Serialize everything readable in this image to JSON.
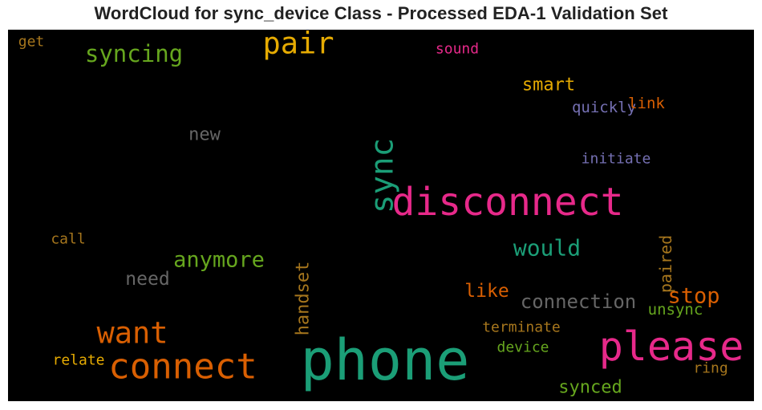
{
  "chart_data": {
    "type": "wordcloud",
    "title": "WordCloud for sync_device Class - Processed EDA-1 Validation Set",
    "background": "#000000",
    "words": [
      {
        "text": "phone",
        "weight": 1.0,
        "color": "#1b9e77",
        "orientation": "horizontal"
      },
      {
        "text": "please",
        "weight": 0.72,
        "color": "#e7298a",
        "orientation": "horizontal"
      },
      {
        "text": "disconnect",
        "weight": 0.68,
        "color": "#e7298a",
        "orientation": "horizontal"
      },
      {
        "text": "connect",
        "weight": 0.63,
        "color": "#d95f02",
        "orientation": "horizontal"
      },
      {
        "text": "sync",
        "weight": 0.55,
        "color": "#1b9e77",
        "orientation": "vertical"
      },
      {
        "text": "want",
        "weight": 0.53,
        "color": "#d95f02",
        "orientation": "horizontal"
      },
      {
        "text": "pair",
        "weight": 0.53,
        "color": "#e6ab02",
        "orientation": "horizontal"
      },
      {
        "text": "syncing",
        "weight": 0.42,
        "color": "#66a61e",
        "orientation": "horizontal"
      },
      {
        "text": "would",
        "weight": 0.4,
        "color": "#1b9e77",
        "orientation": "horizontal"
      },
      {
        "text": "anymore",
        "weight": 0.39,
        "color": "#66a61e",
        "orientation": "horizontal"
      },
      {
        "text": "stop",
        "weight": 0.38,
        "color": "#d95f02",
        "orientation": "horizontal"
      },
      {
        "text": "connection",
        "weight": 0.34,
        "color": "#666666",
        "orientation": "horizontal"
      },
      {
        "text": "need",
        "weight": 0.33,
        "color": "#666666",
        "orientation": "horizontal"
      },
      {
        "text": "handset",
        "weight": 0.32,
        "color": "#a6761d",
        "orientation": "vertical"
      },
      {
        "text": "like",
        "weight": 0.33,
        "color": "#d95f02",
        "orientation": "horizontal"
      },
      {
        "text": "synced",
        "weight": 0.32,
        "color": "#66a61e",
        "orientation": "horizontal"
      },
      {
        "text": "smart",
        "weight": 0.31,
        "color": "#e6ab02",
        "orientation": "horizontal"
      },
      {
        "text": "new",
        "weight": 0.31,
        "color": "#666666",
        "orientation": "horizontal"
      },
      {
        "text": "paired",
        "weight": 0.28,
        "color": "#a6761d",
        "orientation": "vertical"
      },
      {
        "text": "unsync",
        "weight": 0.27,
        "color": "#66a61e",
        "orientation": "horizontal"
      },
      {
        "text": "quickly",
        "weight": 0.27,
        "color": "#7570b3",
        "orientation": "horizontal"
      },
      {
        "text": "link",
        "weight": 0.27,
        "color": "#d95f02",
        "orientation": "horizontal"
      },
      {
        "text": "initiate",
        "weight": 0.26,
        "color": "#7570b3",
        "orientation": "horizontal"
      },
      {
        "text": "terminate",
        "weight": 0.26,
        "color": "#a6761d",
        "orientation": "horizontal"
      },
      {
        "text": "device",
        "weight": 0.26,
        "color": "#66a61e",
        "orientation": "horizontal"
      },
      {
        "text": "ring",
        "weight": 0.26,
        "color": "#a6761d",
        "orientation": "horizontal"
      },
      {
        "text": "relate",
        "weight": 0.26,
        "color": "#e6ab02",
        "orientation": "horizontal"
      },
      {
        "text": "sound",
        "weight": 0.25,
        "color": "#e7298a",
        "orientation": "horizontal"
      },
      {
        "text": "call",
        "weight": 0.25,
        "color": "#a6761d",
        "orientation": "horizontal"
      },
      {
        "text": "get",
        "weight": 0.25,
        "color": "#a6761d",
        "orientation": "horizontal"
      }
    ]
  }
}
